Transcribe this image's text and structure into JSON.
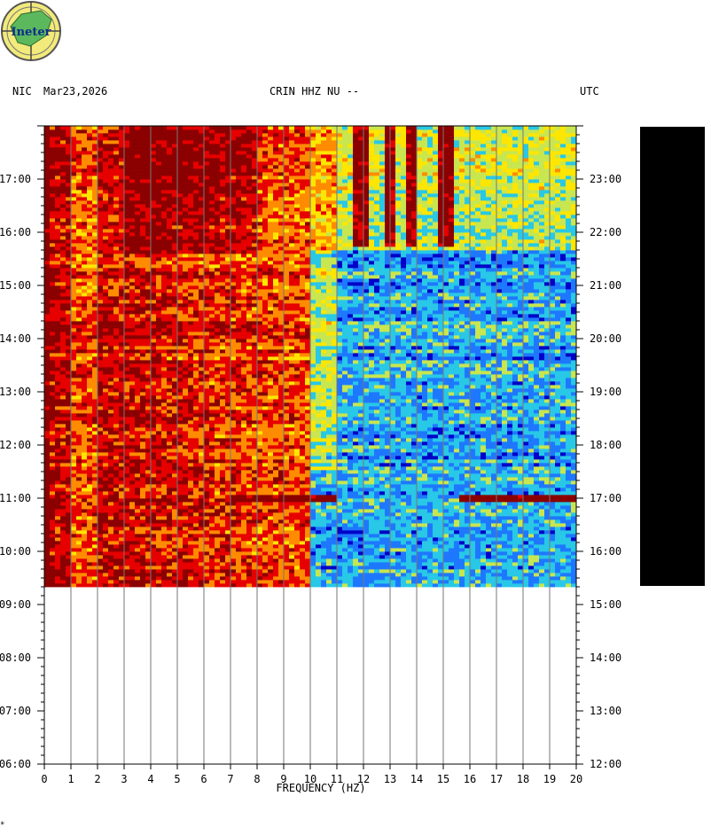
{
  "header": {
    "timezone_left": "NIC",
    "date": "Mar23,2026",
    "station": "CRIN HHZ NU --",
    "timezone_right": "UTC"
  },
  "logo": {
    "text": "Ineter"
  },
  "chart_data": {
    "type": "heatmap",
    "title": "CRIN HHZ NU --",
    "xlabel": "FREQUENCY (HZ)",
    "xlim": [
      0,
      20
    ],
    "x_ticks": [
      "0",
      "1",
      "2",
      "3",
      "4",
      "5",
      "6",
      "7",
      "8",
      "9",
      "10",
      "11",
      "12",
      "13",
      "14",
      "15",
      "16",
      "17",
      "18",
      "19",
      "20"
    ],
    "left_time_ticks": [
      "17:00",
      "16:00",
      "15:00",
      "14:00",
      "13:00",
      "12:00",
      "11:00",
      "10:00",
      "09:00",
      "08:00",
      "07:00",
      "06:00"
    ],
    "right_time_ticks": [
      "23:00",
      "22:00",
      "21:00",
      "20:00",
      "19:00",
      "18:00",
      "17:00",
      "16:00",
      "15:00",
      "14:00",
      "13:00",
      "12:00"
    ],
    "left_axis_timezone": "NIC",
    "right_axis_timezone": "UTC",
    "time_range_local": [
      "06:00",
      "18:00"
    ],
    "data_coverage_local": [
      "09:20",
      "18:00"
    ],
    "colormap": [
      "#0000c8",
      "#1e78ff",
      "#28c8e6",
      "#c8e650",
      "#ffe600",
      "#ff8c00",
      "#e60000",
      "#8b0000"
    ],
    "features": [
      {
        "band_hz": [
          0,
          0.2
        ],
        "level": "saturated"
      },
      {
        "band_hz": [
          0,
          10
        ],
        "level": "high"
      },
      {
        "band_hz": [
          10,
          20
        ],
        "level": "low",
        "time_local": [
          "09:20",
          "15:40"
        ]
      },
      {
        "band_hz": [
          10,
          20
        ],
        "level": "medium",
        "time_local": [
          "15:40",
          "18:00"
        ]
      },
      {
        "band_hz": [
          7,
          11
        ],
        "level": "burst",
        "time_local": [
          "10:55",
          "11:05"
        ]
      },
      {
        "band_hz": [
          15.5,
          20
        ],
        "level": "burst",
        "time_local": [
          "10:55",
          "11:05"
        ]
      },
      {
        "lines_hz": [
          11.9,
          13.0,
          13.8,
          15.1
        ],
        "time_local": [
          "15:45",
          "18:00"
        ],
        "level": "high"
      }
    ]
  },
  "footer": {
    "mark": "*"
  }
}
